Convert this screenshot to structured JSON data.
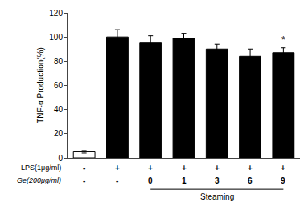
{
  "chart_data": {
    "type": "bar",
    "categories": [
      null,
      null,
      null,
      null,
      null,
      null,
      null
    ],
    "values": [
      5,
      100,
      95,
      99,
      90,
      84,
      87
    ],
    "errors": [
      1,
      6,
      6,
      4,
      4,
      6,
      4
    ],
    "colors": [
      "white",
      "black",
      "black",
      "black",
      "black",
      "black",
      "black"
    ],
    "ylabel": "TNF-α Production(%)",
    "ylim": [
      0,
      120
    ],
    "yticks": [
      0,
      20,
      40,
      60,
      80,
      100,
      120
    ],
    "grid": false,
    "tick_labels": "y",
    "annotations": [
      {
        "type": "row",
        "label": "LPS(1μg/ml)",
        "texts": [
          "-",
          "+",
          "+",
          "+",
          "+",
          "+",
          "+"
        ]
      },
      {
        "type": "row",
        "label": "Ge(200μg/ml)",
        "texts": [
          "-",
          "-",
          "0",
          "1",
          "3",
          "6",
          "9"
        ]
      },
      {
        "type": "bracket",
        "text": "Steaming",
        "from": 2,
        "to": 6
      },
      {
        "type": "mark",
        "text": "*",
        "index": 6
      }
    ]
  }
}
